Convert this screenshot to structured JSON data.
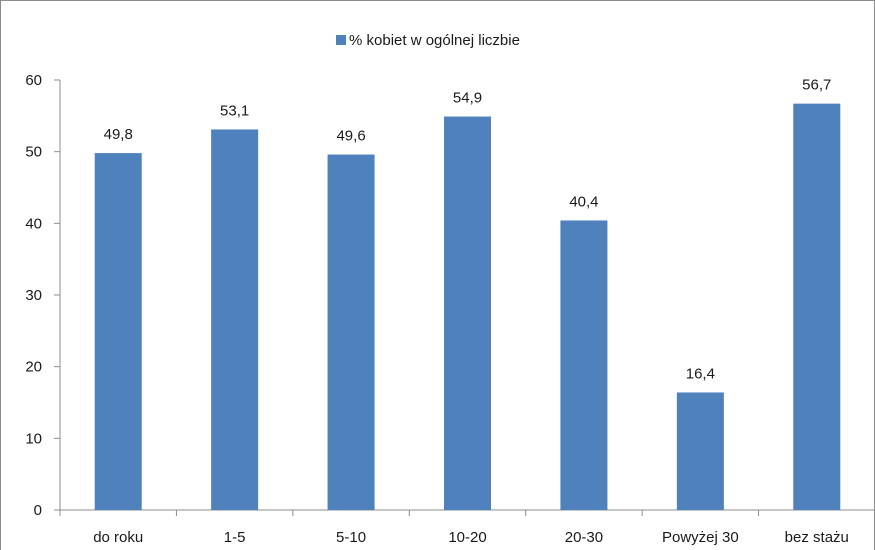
{
  "chart_data": {
    "type": "bar",
    "title": "",
    "xlabel": "",
    "ylabel": "",
    "categories": [
      "do roku",
      "1-5",
      "5-10",
      "10-20",
      "20-30",
      "Powyżej 30",
      "bez stażu"
    ],
    "series": [
      {
        "name": "% kobiet w ogólnej liczbie",
        "values": [
          49.8,
          53.1,
          49.6,
          54.9,
          40.4,
          16.4,
          56.7
        ],
        "value_labels": [
          "49,8",
          "53,1",
          "49,6",
          "54,9",
          "40,4",
          "16,4",
          "56,7"
        ],
        "color": "#4f81bd"
      }
    ],
    "ylim": [
      0,
      60
    ],
    "yticks": [
      0,
      10,
      20,
      30,
      40,
      50,
      60
    ],
    "grid": false,
    "legend_position": "top"
  }
}
